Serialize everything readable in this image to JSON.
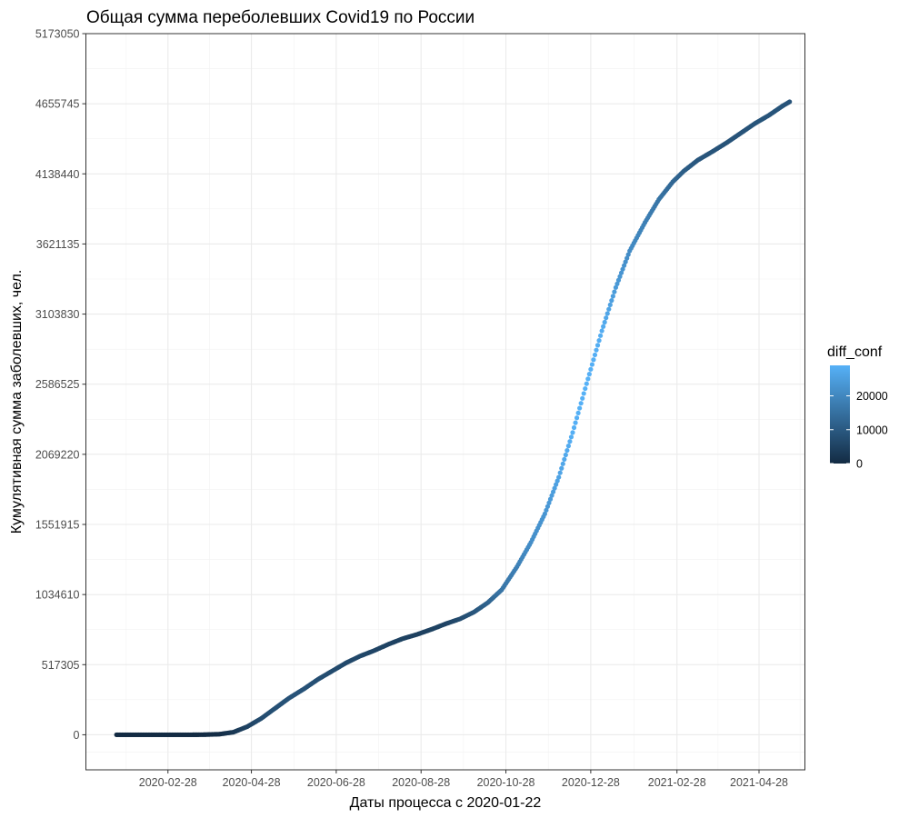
{
  "chart_data": {
    "type": "scatter",
    "title": "Общая сумма переболевших Covid19 по России",
    "xlabel": "Даты процесса с 2020-01-22",
    "ylabel": "Кумулятивная сумма заболевших, чел.",
    "x_start_date": "2020-01-22",
    "x_ticks": [
      "2020-02-28",
      "2020-04-28",
      "2020-06-28",
      "2020-08-28",
      "2020-10-28",
      "2020-12-28",
      "2021-02-28",
      "2021-04-28"
    ],
    "x_range": [
      "2019-12-31",
      "2021-05-31"
    ],
    "y_ticks": [
      0,
      517305,
      1034610,
      1551915,
      2069220,
      2586525,
      3103830,
      3621135,
      4138440,
      4655745,
      5173050
    ],
    "ylim": [
      -258653,
      5173050
    ],
    "grid": true,
    "legend": {
      "title": "diff_conf",
      "position": "right",
      "ticks": [
        0,
        10000,
        20000
      ],
      "range": [
        0,
        29000
      ],
      "color_low": "#132B43",
      "color_high": "#56B1F7"
    },
    "series": [
      {
        "x": [
          "2020-01-22",
          "2020-02-15",
          "2020-03-15",
          "2020-03-25",
          "2020-04-05",
          "2020-04-15",
          "2020-04-25",
          "2020-05-05",
          "2020-05-15",
          "2020-05-25",
          "2020-06-05",
          "2020-06-15",
          "2020-06-25",
          "2020-07-05",
          "2020-07-15",
          "2020-07-25",
          "2020-08-05",
          "2020-08-15",
          "2020-08-25",
          "2020-09-05",
          "2020-09-15",
          "2020-09-25",
          "2020-10-05",
          "2020-10-15",
          "2020-10-25",
          "2020-11-05",
          "2020-11-15",
          "2020-11-25",
          "2020-12-05",
          "2020-12-15",
          "2020-12-25",
          "2021-01-05",
          "2021-01-15",
          "2021-01-25",
          "2021-02-05",
          "2021-02-15",
          "2021-02-25",
          "2021-03-05",
          "2021-03-15",
          "2021-03-25",
          "2021-04-05",
          "2021-04-15",
          "2021-04-25",
          "2021-05-05",
          "2021-05-15",
          "2021-05-20"
        ],
        "y": [
          0,
          0,
          0,
          1000,
          4500,
          19000,
          60000,
          120000,
          195000,
          270000,
          340000,
          410000,
          470000,
          530000,
          580000,
          620000,
          670000,
          710000,
          740000,
          780000,
          820000,
          855000,
          905000,
          975000,
          1070000,
          1240000,
          1420000,
          1630000,
          1900000,
          2230000,
          2590000,
          2980000,
          3300000,
          3570000,
          3780000,
          3950000,
          4080000,
          4160000,
          4240000,
          4300000,
          4370000,
          4440000,
          4510000,
          4570000,
          4640000,
          4670000
        ],
        "diff_conf": [
          0,
          0,
          10,
          50,
          500,
          2500,
          5000,
          7000,
          8000,
          8500,
          8500,
          7800,
          7000,
          6500,
          6200,
          5600,
          5200,
          4900,
          4700,
          4900,
          5300,
          7000,
          9000,
          12000,
          16000,
          18500,
          21500,
          23000,
          26000,
          28500,
          29000,
          28000,
          24000,
          21000,
          18500,
          16000,
          13000,
          11000,
          9500,
          8800,
          8600,
          8700,
          8800,
          8900,
          8800,
          8700
        ]
      }
    ]
  }
}
